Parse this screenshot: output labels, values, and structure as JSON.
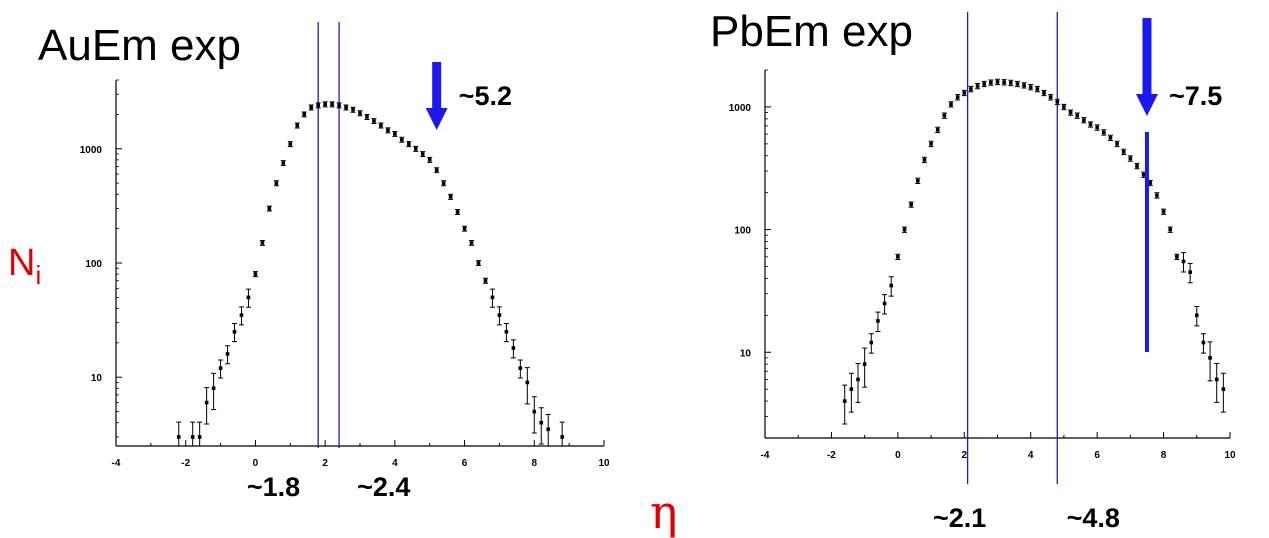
{
  "y_label": {
    "main": "N",
    "sub": "i"
  },
  "x_label": "η",
  "colors": {
    "guide": "#2020b0",
    "arrow": "#1a1aee",
    "axis_label": "#e00000",
    "marker": "#000000"
  },
  "chart_data": [
    {
      "type": "scatter",
      "title": "AuEm exp",
      "y_scale": "log",
      "xlim": [
        -4,
        10
      ],
      "ylim": [
        2.5,
        4000
      ],
      "x_ticks": [
        -4,
        -2,
        0,
        2,
        4,
        6,
        8,
        10
      ],
      "y_ticks": [
        10,
        100,
        1000
      ],
      "grid": false,
      "series": [
        {
          "x": [
            -2.2,
            -1.8,
            -1.6,
            -1.4,
            -1.2,
            -1.0,
            -0.8,
            -0.6,
            -0.4,
            -0.2,
            0.0,
            0.2,
            0.4,
            0.6,
            0.8,
            1.0,
            1.2,
            1.4,
            1.6,
            1.8,
            2.0,
            2.2,
            2.4,
            2.6,
            2.8,
            3.0,
            3.2,
            3.4,
            3.6,
            3.8,
            4.0,
            4.2,
            4.4,
            4.6,
            4.8,
            5.0,
            5.2,
            5.4,
            5.6,
            5.8,
            6.0,
            6.2,
            6.4,
            6.6,
            6.8,
            7.0,
            7.2,
            7.4,
            7.6,
            7.8,
            8.0,
            8.2,
            8.4,
            8.8
          ],
          "y": [
            3,
            3,
            3,
            6,
            8,
            12,
            16,
            25,
            35,
            50,
            80,
            150,
            300,
            500,
            750,
            1100,
            1600,
            2000,
            2300,
            2400,
            2450,
            2450,
            2400,
            2300,
            2200,
            2050,
            1900,
            1750,
            1600,
            1450,
            1350,
            1200,
            1100,
            1000,
            900,
            800,
            650,
            500,
            380,
            280,
            200,
            150,
            100,
            70,
            50,
            35,
            25,
            18,
            12,
            9,
            5,
            4,
            3.5,
            3
          ]
        }
      ],
      "vlines": [
        1.8,
        2.4
      ],
      "vline_labels": [
        "~1.8",
        "~2.4"
      ],
      "arrow": {
        "x": 5.2,
        "label": "~5.2"
      }
    },
    {
      "type": "scatter",
      "title": "PbEm exp",
      "y_scale": "log",
      "xlim": [
        -4,
        10
      ],
      "ylim": [
        2,
        2000
      ],
      "x_ticks": [
        -4,
        -2,
        0,
        2,
        4,
        6,
        8,
        10
      ],
      "y_ticks": [
        10,
        100,
        1000
      ],
      "grid": false,
      "series": [
        {
          "x": [
            -1.6,
            -1.4,
            -1.2,
            -1.0,
            -0.8,
            -0.6,
            -0.4,
            -0.2,
            0.0,
            0.2,
            0.4,
            0.6,
            0.8,
            1.0,
            1.2,
            1.4,
            1.6,
            1.8,
            2.0,
            2.2,
            2.4,
            2.6,
            2.8,
            3.0,
            3.2,
            3.4,
            3.6,
            3.8,
            4.0,
            4.2,
            4.4,
            4.6,
            4.8,
            5.0,
            5.2,
            5.4,
            5.6,
            5.8,
            6.0,
            6.2,
            6.4,
            6.6,
            6.8,
            7.0,
            7.2,
            7.4,
            7.6,
            7.8,
            8.0,
            8.2,
            8.4,
            8.6,
            8.8,
            9.0,
            9.2,
            9.4,
            9.6,
            9.8
          ],
          "y": [
            4,
            5,
            6,
            8,
            12,
            18,
            25,
            35,
            60,
            100,
            160,
            250,
            370,
            500,
            650,
            850,
            1050,
            1200,
            1300,
            1400,
            1480,
            1540,
            1580,
            1600,
            1590,
            1570,
            1540,
            1500,
            1450,
            1400,
            1300,
            1200,
            1100,
            1000,
            900,
            850,
            780,
            720,
            680,
            620,
            560,
            500,
            430,
            380,
            330,
            280,
            240,
            190,
            140,
            100,
            60,
            55,
            45,
            20,
            12,
            9,
            6,
            5
          ]
        }
      ],
      "vlines": [
        2.1,
        4.8
      ],
      "vline_labels": [
        "~2.1",
        "~4.8"
      ],
      "arrow": {
        "x": 7.5,
        "label": "~7.5"
      }
    }
  ]
}
